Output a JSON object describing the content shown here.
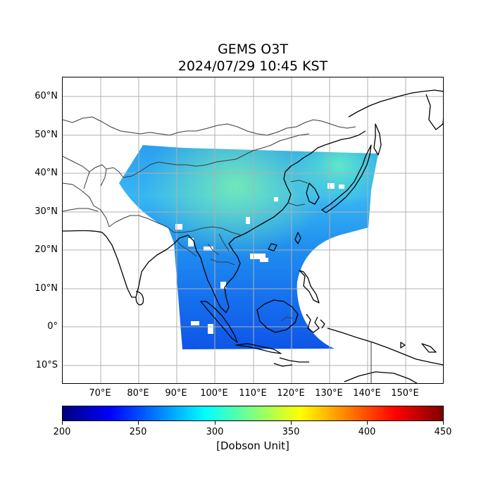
{
  "title": "GEMS O3T",
  "subtitle": "2024/07/29 10:45 KST",
  "map": {
    "lon_range": [
      61,
      161
    ],
    "lat_range": [
      -15,
      65
    ],
    "lon_ticks": [
      "70°E",
      "80°E",
      "90°E",
      "100°E",
      "110°E",
      "120°E",
      "130°E",
      "140°E",
      "150°E"
    ],
    "lat_ticks": [
      "60°N",
      "50°N",
      "40°N",
      "30°N",
      "20°N",
      "10°N",
      "0°",
      "10°S"
    ],
    "grid": true,
    "data_field": "total column ozone",
    "swath_color_low": "#1e6ff0",
    "swath_color_high": "#55f0b8"
  },
  "colorbar": {
    "min": 200,
    "max": 450,
    "ticks": [
      "200",
      "250",
      "300",
      "350",
      "400",
      "450"
    ],
    "label": "[Dobson Unit]",
    "colormap": "jet",
    "stops": [
      "#00007f",
      "#0000ff",
      "#007fff",
      "#00ffff",
      "#7fff7f",
      "#ffff00",
      "#ff7f00",
      "#ff0000",
      "#7f0000"
    ]
  }
}
